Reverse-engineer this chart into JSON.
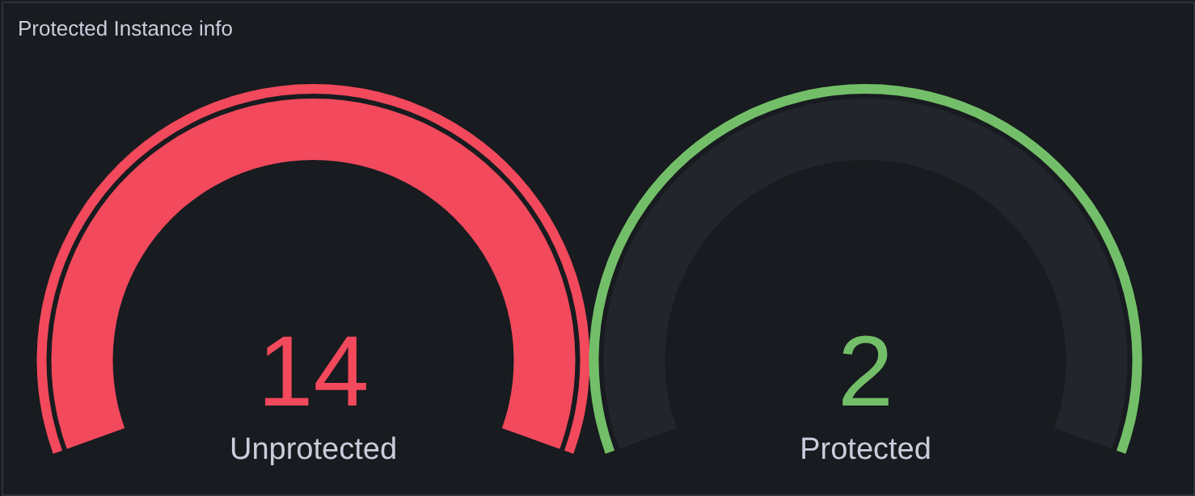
{
  "chart_data": {
    "type": "other",
    "title": "Protected Instance info",
    "categories": [
      "Unprotected",
      "Protected"
    ],
    "values": [
      14,
      2
    ],
    "data_labels": true,
    "colors": [
      "#f2495c",
      "#73bf69"
    ]
  }
}
